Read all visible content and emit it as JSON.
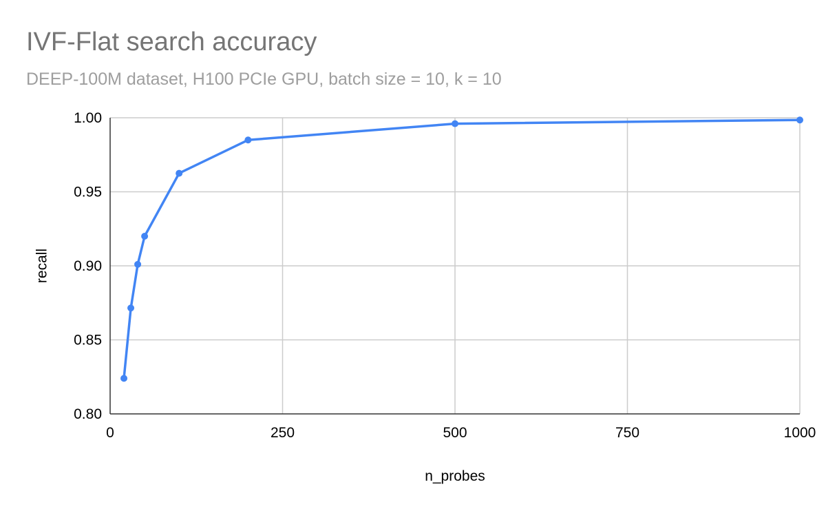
{
  "chart_data": {
    "type": "line",
    "title": "IVF-Flat search accuracy",
    "subtitle": "DEEP-100M dataset, H100 PCIe GPU, batch size = 10, k = 10",
    "xlabel": "n_probes",
    "ylabel": "recall",
    "xlim": [
      0,
      1000
    ],
    "ylim": [
      0.8,
      1.0
    ],
    "xticks": [
      0,
      250,
      500,
      750,
      1000
    ],
    "yticks": [
      0.8,
      0.85,
      0.9,
      0.95,
      1.0
    ],
    "xtick_labels": [
      "0",
      "250",
      "500",
      "750",
      "1000"
    ],
    "ytick_labels": [
      "0.80",
      "0.85",
      "0.90",
      "0.95",
      "1.00"
    ],
    "grid": true,
    "legend": "none",
    "series": [
      {
        "color": "#4285f4",
        "x": [
          20,
          30,
          40,
          50,
          100,
          200,
          500,
          1000
        ],
        "y": [
          0.824,
          0.8715,
          0.901,
          0.92,
          0.9625,
          0.985,
          0.996,
          0.9985
        ]
      }
    ]
  }
}
